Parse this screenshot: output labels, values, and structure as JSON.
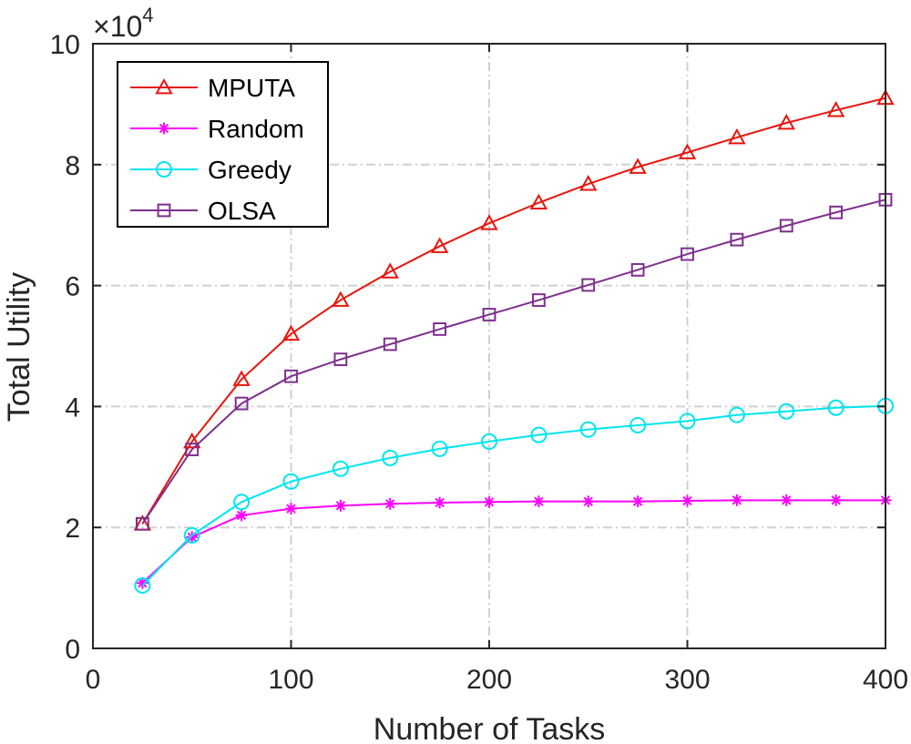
{
  "chart_data": {
    "type": "line",
    "title": "",
    "xlabel": "Number of Tasks",
    "ylabel": "Total Utility",
    "y_multiplier_label": "×10",
    "y_multiplier_exponent": "4",
    "xlim": [
      0,
      400
    ],
    "ylim": [
      0,
      100000
    ],
    "xticks": [
      0,
      100,
      200,
      300,
      400
    ],
    "yticks": [
      0,
      20000,
      40000,
      60000,
      80000,
      100000
    ],
    "xtick_labels": [
      "0",
      "100",
      "200",
      "300",
      "400"
    ],
    "ytick_labels": [
      "0",
      "2",
      "4",
      "6",
      "8",
      "10"
    ],
    "grid": true,
    "legend_position": "top-left",
    "x": [
      25,
      50,
      75,
      100,
      125,
      150,
      175,
      200,
      225,
      250,
      275,
      300,
      325,
      350,
      375,
      400
    ],
    "series": [
      {
        "name": "MPUTA",
        "color": "#e8150d",
        "marker": "triangle",
        "values": [
          20600,
          34200,
          44500,
          52000,
          57600,
          62300,
          66500,
          70300,
          73700,
          76800,
          79600,
          82000,
          84500,
          86900,
          89000,
          91000
        ]
      },
      {
        "name": "Random",
        "color": "#ff00ff",
        "marker": "asterisk",
        "values": [
          10800,
          18400,
          22000,
          23100,
          23600,
          23900,
          24100,
          24200,
          24300,
          24300,
          24300,
          24400,
          24500,
          24500,
          24500,
          24500
        ]
      },
      {
        "name": "Greedy",
        "color": "#00e5ee",
        "marker": "circle",
        "values": [
          10400,
          18700,
          24200,
          27600,
          29700,
          31500,
          33000,
          34200,
          35300,
          36200,
          36900,
          37600,
          38600,
          39200,
          39800,
          40100
        ]
      },
      {
        "name": "OLSA",
        "color": "#7e2f8e",
        "marker": "square",
        "values": [
          20600,
          32900,
          40500,
          45000,
          47800,
          50300,
          52800,
          55200,
          57600,
          60100,
          62600,
          65200,
          67600,
          69900,
          72100,
          74200
        ]
      }
    ]
  }
}
